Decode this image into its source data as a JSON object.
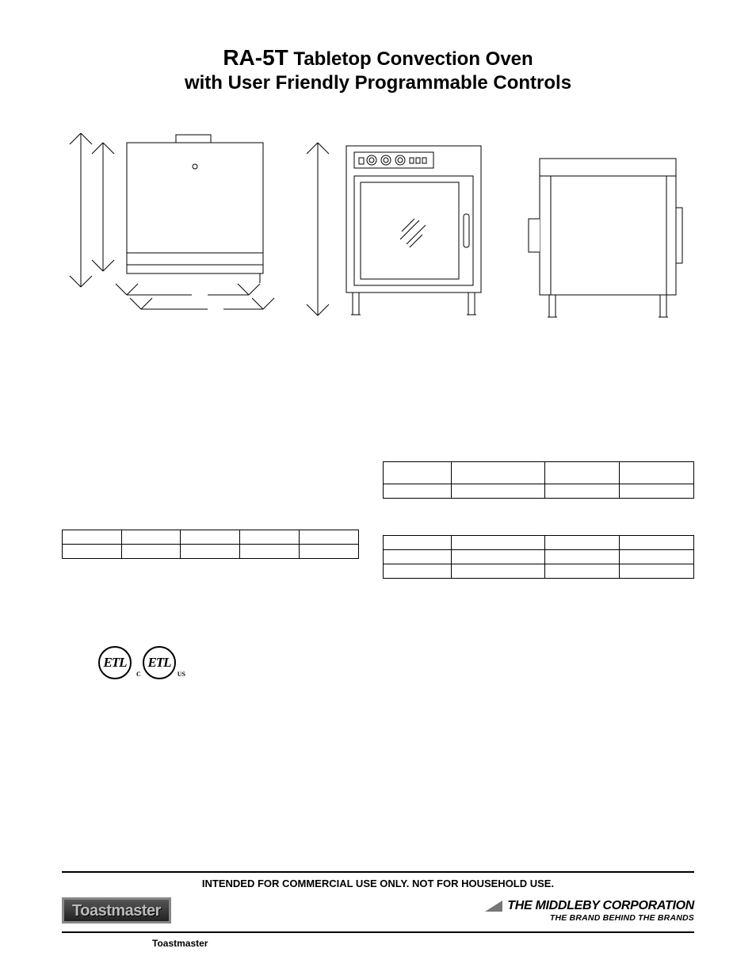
{
  "title": {
    "model": "RA-5T",
    "rest_line1": " Tabletop Convection Oven",
    "line2": "with User Friendly Programmable Controls"
  },
  "diagrams": {
    "type": "technical-line-drawing",
    "stroke": "#000000",
    "stroke_width": 1,
    "views": [
      "top",
      "front",
      "side"
    ]
  },
  "table_left": {
    "type": "table",
    "cols": 5,
    "col_widths": [
      "20%",
      "20%",
      "20%",
      "20%",
      "20%"
    ],
    "rows": [
      [
        "",
        "",
        "",
        "",
        ""
      ],
      [
        "",
        "",
        "",
        "",
        ""
      ]
    ]
  },
  "table_right_top": {
    "type": "table",
    "cols": 4,
    "col_widths": [
      "22%",
      "30%",
      "24%",
      "24%"
    ],
    "rows": [
      [
        "",
        "",
        "",
        ""
      ],
      [
        "",
        "",
        "",
        ""
      ]
    ],
    "header_row_height": 28
  },
  "table_right_bottom": {
    "type": "table",
    "cols": 4,
    "col_widths": [
      "22%",
      "30%",
      "24%",
      "24%"
    ],
    "rows": [
      [
        "",
        "",
        "",
        ""
      ],
      [
        "",
        "",
        "",
        ""
      ],
      [
        "",
        "",
        "",
        ""
      ]
    ]
  },
  "cert": {
    "badge1": "ETL",
    "badge2": "ETL",
    "badge2_left": "C",
    "badge2_right": "US"
  },
  "footer": {
    "notice": "INTENDED FOR COMMERCIAL USE ONLY. NOT FOR HOUSEHOLD USE.",
    "brand_logo_text": "Toastmaster",
    "corp_top": "THE MIDDLEBY CORPORATION",
    "corp_bottom": "THE BRAND BEHIND THE BRANDS",
    "brand_footer": "Toastmaster"
  }
}
